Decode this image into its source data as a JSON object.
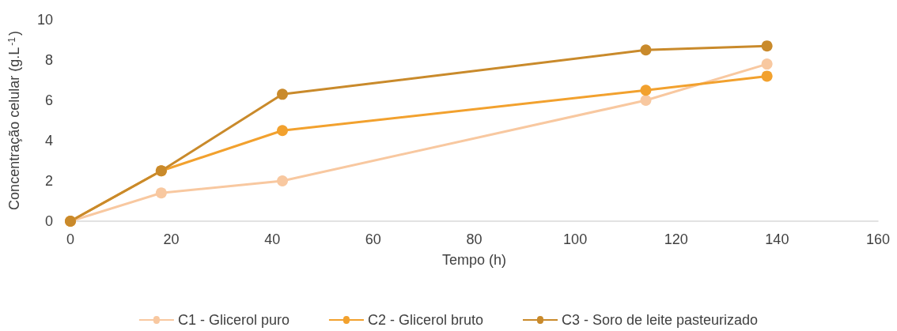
{
  "chart_data": {
    "type": "line",
    "xlabel": "Tempo (h)",
    "ylabel": "Concentração celular (g.L$^{-1}$)",
    "x": [
      0,
      18,
      42,
      114,
      138
    ],
    "series": [
      {
        "name": "C1 - Glicerol puro",
        "color": "#f8c8a0",
        "values": [
          0,
          1.4,
          2.0,
          6.0,
          7.8
        ]
      },
      {
        "name": "C2 - Glicerol bruto",
        "color": "#f2a12e",
        "values": [
          0,
          2.5,
          4.5,
          6.5,
          7.2
        ]
      },
      {
        "name": "C3 - Soro de leite pasteurizado",
        "color": "#c98a2b",
        "values": [
          0,
          2.5,
          6.3,
          8.5,
          8.7
        ]
      }
    ],
    "xlim": [
      0,
      160
    ],
    "xticks": [
      0,
      20,
      40,
      60,
      80,
      100,
      120,
      140,
      160
    ],
    "ylim": [
      0,
      10
    ],
    "yticks": [
      0,
      2,
      4,
      6,
      8,
      10
    ],
    "grid": false,
    "legend": "bottom",
    "marker": "circle",
    "line_style": "solid"
  }
}
